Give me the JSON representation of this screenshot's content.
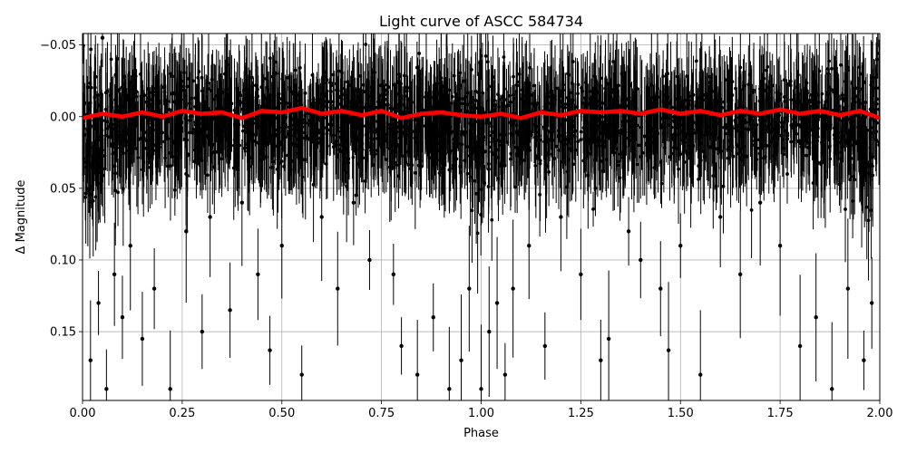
{
  "chart_data": {
    "type": "scatter",
    "title": "Light curve of ASCC 584734",
    "xlabel": "Phase",
    "ylabel": "Δ Magnitude",
    "xlim": [
      0.0,
      2.0
    ],
    "ylim": [
      0.198,
      -0.058
    ],
    "y_inverted": true,
    "grid": true,
    "x_ticks": [
      0.0,
      0.25,
      0.5,
      0.75,
      1.0,
      1.25,
      1.5,
      1.75,
      2.0
    ],
    "x_tick_labels": [
      "0.00",
      "0.25",
      "0.50",
      "0.75",
      "1.00",
      "1.25",
      "1.50",
      "1.75",
      "2.00"
    ],
    "y_ticks": [
      -0.05,
      0.0,
      0.05,
      0.1,
      0.15
    ],
    "y_tick_labels": [
      "−0.05",
      "0.00",
      "0.05",
      "0.10",
      "0.15"
    ],
    "series": [
      {
        "style": "points-with-errorbars",
        "color": "#000000",
        "description_points": "dense photometry, scatter roughly ±0.04 mag around 0, with deeper outliers near phase 0.0, 1.0 and 2.0",
        "x": [
          0.02,
          0.04,
          0.05,
          0.06,
          0.08,
          0.1,
          0.12,
          0.15,
          0.18,
          0.22,
          0.26,
          0.3,
          0.32,
          0.37,
          0.4,
          0.44,
          0.47,
          0.5,
          0.55,
          0.6,
          0.64,
          0.68,
          0.72,
          0.78,
          0.8,
          0.84,
          0.88,
          0.92,
          0.95,
          0.97,
          1.0,
          1.02,
          1.04,
          1.06,
          1.08,
          1.12,
          1.16,
          1.2,
          1.25,
          1.3,
          1.32,
          1.37,
          1.4,
          1.45,
          1.47,
          1.5,
          1.55,
          1.6,
          1.65,
          1.7,
          1.75,
          1.8,
          1.84,
          1.88,
          1.92,
          1.96,
          1.98
        ],
        "y": [
          0.17,
          0.13,
          -0.055,
          0.19,
          0.11,
          0.14,
          0.09,
          0.155,
          0.12,
          0.19,
          0.08,
          0.15,
          0.07,
          0.135,
          0.06,
          0.11,
          0.163,
          0.09,
          0.18,
          0.07,
          0.12,
          0.06,
          0.1,
          0.11,
          0.16,
          0.18,
          0.14,
          0.19,
          0.17,
          0.12,
          0.19,
          0.15,
          0.13,
          0.18,
          0.12,
          0.09,
          0.16,
          0.07,
          0.11,
          0.17,
          0.155,
          0.08,
          0.1,
          0.12,
          0.163,
          0.09,
          0.18,
          0.07,
          0.11,
          0.06,
          0.09,
          0.16,
          0.14,
          0.19,
          0.12,
          0.17,
          0.13
        ]
      },
      {
        "style": "binned-line",
        "color": "#ff0000",
        "x": [
          0.0,
          0.05,
          0.1,
          0.15,
          0.2,
          0.25,
          0.3,
          0.35,
          0.4,
          0.45,
          0.5,
          0.55,
          0.6,
          0.65,
          0.7,
          0.75,
          0.8,
          0.85,
          0.9,
          0.95,
          1.0,
          1.05,
          1.1,
          1.15,
          1.2,
          1.25,
          1.3,
          1.35,
          1.4,
          1.45,
          1.5,
          1.55,
          1.6,
          1.65,
          1.7,
          1.75,
          1.8,
          1.85,
          1.9,
          1.95,
          2.0
        ],
        "y": [
          0.001,
          -0.002,
          0.0,
          -0.003,
          0.0,
          -0.004,
          -0.002,
          -0.003,
          0.001,
          -0.004,
          -0.003,
          -0.006,
          -0.002,
          -0.004,
          -0.001,
          -0.004,
          0.001,
          -0.002,
          -0.003,
          -0.001,
          0.0,
          -0.002,
          0.001,
          -0.003,
          -0.001,
          -0.004,
          -0.003,
          -0.004,
          -0.002,
          -0.005,
          -0.002,
          -0.004,
          -0.001,
          -0.004,
          -0.002,
          -0.005,
          -0.002,
          -0.004,
          -0.001,
          -0.004,
          0.001
        ]
      }
    ]
  }
}
